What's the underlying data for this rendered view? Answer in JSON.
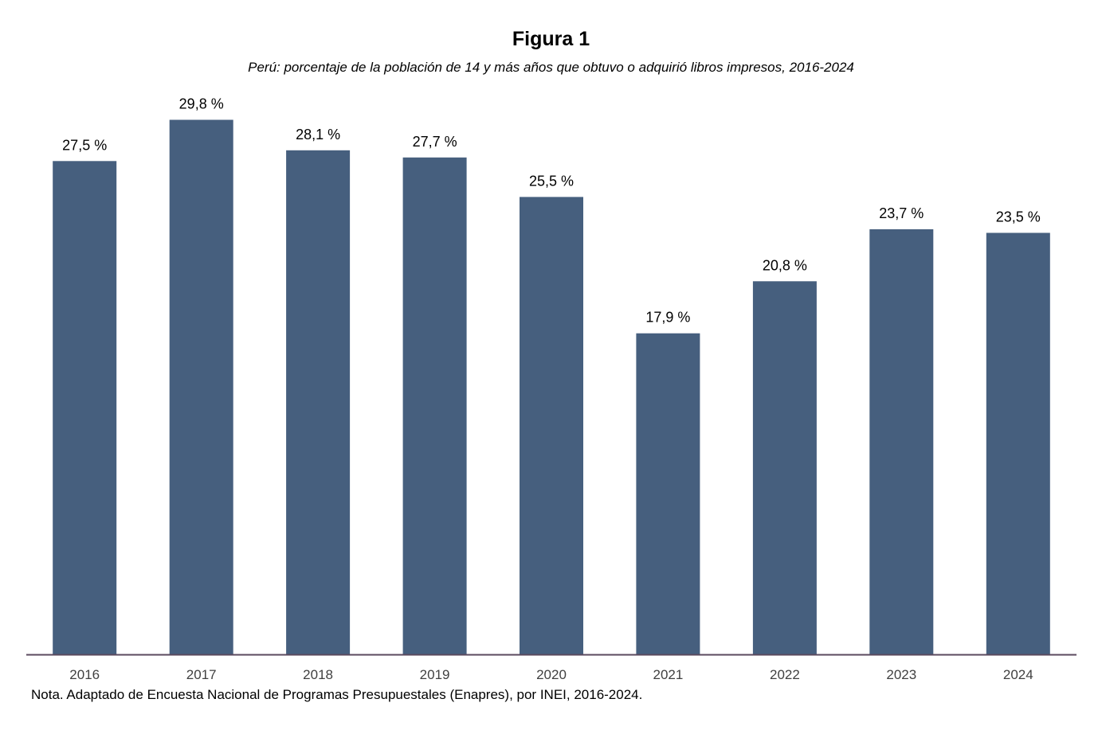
{
  "figure": {
    "title": "Figura 1",
    "subtitle": "Perú: porcentaje de la población de 14 y más años que obtuvo o adquirió libros impresos, 2016-2024",
    "note": "Nota. Adaptado de Encuesta Nacional de Programas Presupuestales (Enapres), por INEI, 2016-2024."
  },
  "chart_data": {
    "type": "bar",
    "title": "Figura 1",
    "subtitle": "Perú: porcentaje de la población de 14 y más años que obtuvo o adquirió libros impresos, 2016-2024",
    "categories": [
      "2016",
      "2017",
      "2018",
      "2019",
      "2020",
      "2021",
      "2022",
      "2023",
      "2024"
    ],
    "values": [
      27.5,
      29.8,
      28.1,
      27.7,
      25.5,
      17.9,
      20.8,
      23.7,
      23.5
    ],
    "data_labels": [
      "27,5 %",
      "29,8 %",
      "28,1 %",
      "27,7 %",
      "25,5 %",
      "17,9 %",
      "20,8 %",
      "23,7 %",
      "23,5 %"
    ],
    "xlabel": "",
    "ylabel": "",
    "ylim": [
      0,
      30
    ],
    "grid": false,
    "legend": "none",
    "colors": {
      "bar": "#465f7e",
      "axis": "#5b4a5e",
      "tick_label": "#404040"
    }
  }
}
